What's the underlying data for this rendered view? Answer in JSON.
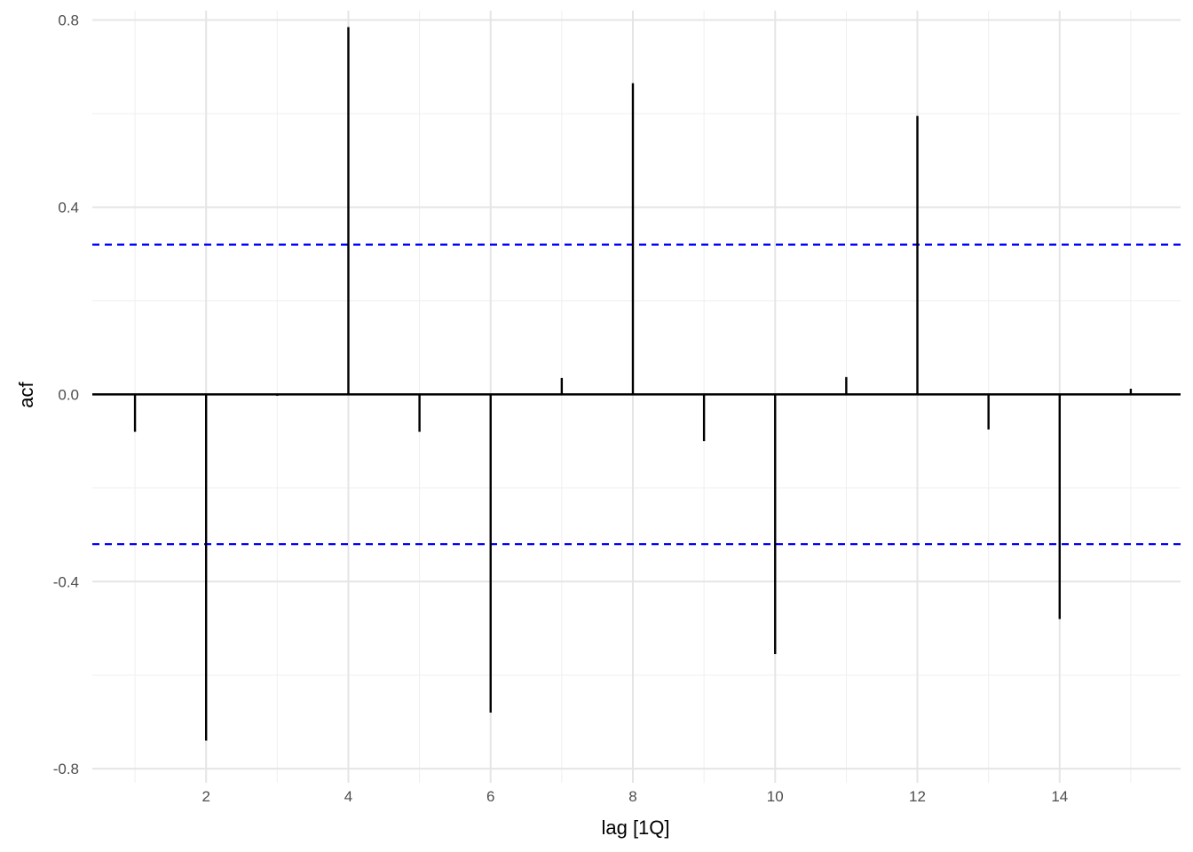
{
  "chart_data": {
    "type": "bar",
    "title": "",
    "xlabel": "lag [1Q]",
    "ylabel": "acf",
    "x": [
      1,
      2,
      3,
      4,
      5,
      6,
      7,
      8,
      9,
      10,
      11,
      12,
      13,
      14,
      15
    ],
    "values": [
      -0.08,
      -0.74,
      -0.003,
      0.785,
      -0.08,
      -0.68,
      0.035,
      0.665,
      -0.1,
      -0.555,
      0.037,
      0.595,
      -0.075,
      -0.48,
      0.012
    ],
    "xlim": [
      0.4,
      15.7
    ],
    "ylim": [
      -0.83,
      0.82
    ],
    "x_ticks": [
      2,
      4,
      6,
      8,
      10,
      12,
      14
    ],
    "y_ticks": [
      -0.8,
      -0.4,
      0.0,
      0.4,
      0.8
    ],
    "x_tick_labels": [
      "2",
      "4",
      "6",
      "8",
      "10",
      "12",
      "14"
    ],
    "y_tick_labels": [
      "-0.8",
      "-0.4",
      "0.0",
      "0.4",
      "0.8"
    ],
    "confidence_band": 0.32,
    "confidence_color": "#0000ff",
    "spike_color": "#000000",
    "grid": true,
    "legend": "none"
  }
}
